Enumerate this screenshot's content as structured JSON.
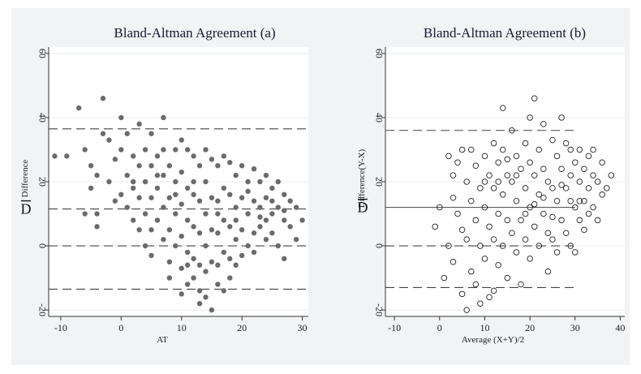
{
  "chart_data": [
    {
      "type": "scatter",
      "title": "Bland-Altman Agreement (a)",
      "xlabel": "AT",
      "ylabel": "Difference",
      "mean_label": "D",
      "xlim": [
        -12,
        31
      ],
      "ylim": [
        -22,
        62
      ],
      "xticks": [
        "-10",
        "0",
        "10",
        "20",
        "30"
      ],
      "yticks": [
        "-20",
        "0",
        "20",
        "40",
        "60"
      ],
      "marker": "filled-dot",
      "marker_color": "#6b6b6b",
      "mean_difference": 11.5,
      "limits_of_agreement": [
        -13.5,
        36.5
      ],
      "zero_line": 0,
      "points": [
        [
          -11,
          28
        ],
        [
          -9,
          28
        ],
        [
          -7,
          43
        ],
        [
          -6,
          30
        ],
        [
          -5,
          25
        ],
        [
          -4,
          22
        ],
        [
          -4,
          10
        ],
        [
          -5,
          18
        ],
        [
          -3,
          46
        ],
        [
          -3,
          35
        ],
        [
          -2,
          20
        ],
        [
          -2,
          33
        ],
        [
          -1,
          14
        ],
        [
          -1,
          27
        ],
        [
          0,
          40
        ],
        [
          0,
          30
        ],
        [
          1,
          22
        ],
        [
          1,
          12
        ],
        [
          1,
          35
        ],
        [
          2,
          28
        ],
        [
          2,
          18
        ],
        [
          2,
          8
        ],
        [
          3,
          38
        ],
        [
          3,
          25
        ],
        [
          3,
          15
        ],
        [
          3,
          5
        ],
        [
          4,
          30
        ],
        [
          4,
          20
        ],
        [
          4,
          10
        ],
        [
          4,
          0
        ],
        [
          5,
          35
        ],
        [
          5,
          25
        ],
        [
          5,
          15
        ],
        [
          5,
          5
        ],
        [
          5,
          -3
        ],
        [
          6,
          28
        ],
        [
          6,
          18
        ],
        [
          6,
          8
        ],
        [
          7,
          40
        ],
        [
          7,
          30
        ],
        [
          7,
          22
        ],
        [
          7,
          12
        ],
        [
          7,
          2
        ],
        [
          8,
          -5
        ],
        [
          8,
          -10
        ],
        [
          8,
          25
        ],
        [
          8,
          15
        ],
        [
          8,
          5
        ],
        [
          9,
          30
        ],
        [
          9,
          20
        ],
        [
          9,
          10
        ],
        [
          9,
          0
        ],
        [
          10,
          33
        ],
        [
          10,
          23
        ],
        [
          10,
          13
        ],
        [
          10,
          3
        ],
        [
          10,
          -7
        ],
        [
          10,
          -15
        ],
        [
          11,
          30
        ],
        [
          11,
          18
        ],
        [
          11,
          8
        ],
        [
          11,
          -2
        ],
        [
          11,
          -12
        ],
        [
          12,
          28
        ],
        [
          12,
          16
        ],
        [
          12,
          6
        ],
        [
          12,
          -4
        ],
        [
          12,
          -10
        ],
        [
          13,
          25
        ],
        [
          13,
          14
        ],
        [
          13,
          4
        ],
        [
          13,
          -6
        ],
        [
          13,
          -14
        ],
        [
          14,
          30
        ],
        [
          14,
          20
        ],
        [
          14,
          10
        ],
        [
          14,
          0
        ],
        [
          14,
          -8
        ],
        [
          15,
          27
        ],
        [
          15,
          15
        ],
        [
          15,
          5
        ],
        [
          15,
          -5
        ],
        [
          15,
          -20
        ],
        [
          16,
          25
        ],
        [
          16,
          14
        ],
        [
          16,
          4
        ],
        [
          16,
          -6
        ],
        [
          16,
          -12
        ],
        [
          17,
          28
        ],
        [
          17,
          18
        ],
        [
          17,
          8
        ],
        [
          17,
          -2
        ],
        [
          18,
          26
        ],
        [
          18,
          16
        ],
        [
          18,
          6
        ],
        [
          18,
          -4
        ],
        [
          19,
          22
        ],
        [
          19,
          12
        ],
        [
          19,
          2
        ],
        [
          19,
          -6
        ],
        [
          20,
          25
        ],
        [
          20,
          15
        ],
        [
          20,
          5
        ],
        [
          20,
          -3
        ],
        [
          21,
          20
        ],
        [
          21,
          10
        ],
        [
          21,
          0
        ],
        [
          22,
          24
        ],
        [
          22,
          14
        ],
        [
          22,
          4
        ],
        [
          22,
          -2
        ],
        [
          23,
          20
        ],
        [
          23,
          12
        ],
        [
          23,
          6
        ],
        [
          24,
          22
        ],
        [
          24,
          15
        ],
        [
          24,
          8
        ],
        [
          24,
          2
        ],
        [
          25,
          18
        ],
        [
          25,
          10
        ],
        [
          25,
          4
        ],
        [
          26,
          20
        ],
        [
          26,
          12
        ],
        [
          26,
          0
        ],
        [
          27,
          16
        ],
        [
          27,
          8
        ],
        [
          27,
          -4
        ],
        [
          28,
          14
        ],
        [
          28,
          6
        ],
        [
          29,
          12
        ],
        [
          29,
          2
        ],
        [
          30,
          8
        ],
        [
          -6,
          10
        ],
        [
          -4,
          6
        ],
        [
          0,
          16
        ],
        [
          2,
          20
        ],
        [
          6,
          22
        ],
        [
          9,
          16
        ],
        [
          12,
          20
        ],
        [
          16,
          10
        ],
        [
          19,
          8
        ],
        [
          21,
          17
        ],
        [
          23,
          9
        ],
        [
          25,
          14
        ],
        [
          27,
          11
        ],
        [
          18,
          -10
        ],
        [
          14,
          -16
        ],
        [
          11,
          -6
        ],
        [
          13,
          -18
        ],
        [
          17,
          -14
        ]
      ]
    },
    {
      "type": "scatter",
      "title": "Bland-Altman Agreement (b)",
      "xlabel": "Average (X+Y)/2",
      "ylabel": "Difference(Y-X)",
      "mean_label": "D",
      "xlim": [
        -12,
        41
      ],
      "ylim": [
        -22,
        62
      ],
      "xticks": [
        "-10",
        "0",
        "10",
        "20",
        "30",
        "40"
      ],
      "yticks": [
        "-20",
        "0",
        "20",
        "40",
        "60"
      ],
      "marker": "hollow-circle",
      "marker_color": "#222222",
      "mean_difference": 12,
      "limits_of_agreement": [
        -13,
        36
      ],
      "zero_line": 0,
      "points": [
        [
          -1,
          6
        ],
        [
          0,
          12
        ],
        [
          1,
          -10
        ],
        [
          2,
          0
        ],
        [
          2,
          28
        ],
        [
          3,
          15
        ],
        [
          3,
          -5
        ],
        [
          4,
          26
        ],
        [
          4,
          10
        ],
        [
          5,
          5
        ],
        [
          5,
          -15
        ],
        [
          6,
          20
        ],
        [
          6,
          2
        ],
        [
          7,
          30
        ],
        [
          7,
          14
        ],
        [
          7,
          -8
        ],
        [
          8,
          25
        ],
        [
          8,
          8
        ],
        [
          8,
          -12
        ],
        [
          9,
          18
        ],
        [
          9,
          0
        ],
        [
          10,
          28
        ],
        [
          10,
          12
        ],
        [
          10,
          -4
        ],
        [
          11,
          22
        ],
        [
          11,
          6
        ],
        [
          11,
          -16
        ],
        [
          12,
          32
        ],
        [
          12,
          18
        ],
        [
          12,
          2
        ],
        [
          13,
          26
        ],
        [
          13,
          10
        ],
        [
          13,
          -6
        ],
        [
          14,
          43
        ],
        [
          14,
          30
        ],
        [
          14,
          16
        ],
        [
          14,
          0
        ],
        [
          15,
          22
        ],
        [
          15,
          8
        ],
        [
          15,
          -10
        ],
        [
          16,
          36
        ],
        [
          16,
          20
        ],
        [
          16,
          4
        ],
        [
          17,
          28
        ],
        [
          17,
          14
        ],
        [
          17,
          -2
        ],
        [
          18,
          24
        ],
        [
          18,
          8
        ],
        [
          19,
          32
        ],
        [
          19,
          18
        ],
        [
          19,
          2
        ],
        [
          20,
          40
        ],
        [
          20,
          26
        ],
        [
          20,
          12
        ],
        [
          20,
          -4
        ],
        [
          21,
          46
        ],
        [
          21,
          22
        ],
        [
          21,
          6
        ],
        [
          22,
          30
        ],
        [
          22,
          16
        ],
        [
          22,
          0
        ],
        [
          23,
          38
        ],
        [
          23,
          24
        ],
        [
          23,
          10
        ],
        [
          24,
          20
        ],
        [
          24,
          4
        ],
        [
          25,
          33
        ],
        [
          25,
          18
        ],
        [
          25,
          2
        ],
        [
          26,
          28
        ],
        [
          26,
          14
        ],
        [
          26,
          -2
        ],
        [
          27,
          40
        ],
        [
          27,
          24
        ],
        [
          27,
          8
        ],
        [
          28,
          32
        ],
        [
          28,
          18
        ],
        [
          28,
          4
        ],
        [
          29,
          30
        ],
        [
          29,
          14
        ],
        [
          29,
          0
        ],
        [
          30,
          26
        ],
        [
          30,
          12
        ],
        [
          31,
          30
        ],
        [
          31,
          20
        ],
        [
          31,
          8
        ],
        [
          32,
          24
        ],
        [
          32,
          14
        ],
        [
          33,
          28
        ],
        [
          33,
          18
        ],
        [
          33,
          10
        ],
        [
          34,
          22
        ],
        [
          34,
          12
        ],
        [
          35,
          20
        ],
        [
          35,
          8
        ],
        [
          36,
          16
        ],
        [
          37,
          18
        ],
        [
          38,
          22
        ],
        [
          36,
          26
        ],
        [
          34,
          30
        ],
        [
          32,
          5
        ],
        [
          30,
          -2
        ],
        [
          24,
          -8
        ],
        [
          18,
          -12
        ],
        [
          12,
          -14
        ],
        [
          9,
          -18
        ],
        [
          6,
          -20
        ],
        [
          5,
          30
        ],
        [
          3,
          22
        ],
        [
          15,
          27
        ],
        [
          19,
          10
        ],
        [
          23,
          15
        ],
        [
          27,
          19
        ],
        [
          29,
          22
        ],
        [
          31,
          14
        ],
        [
          25,
          9
        ],
        [
          21,
          13
        ],
        [
          17,
          22
        ],
        [
          13,
          20
        ],
        [
          10,
          20
        ]
      ]
    }
  ]
}
